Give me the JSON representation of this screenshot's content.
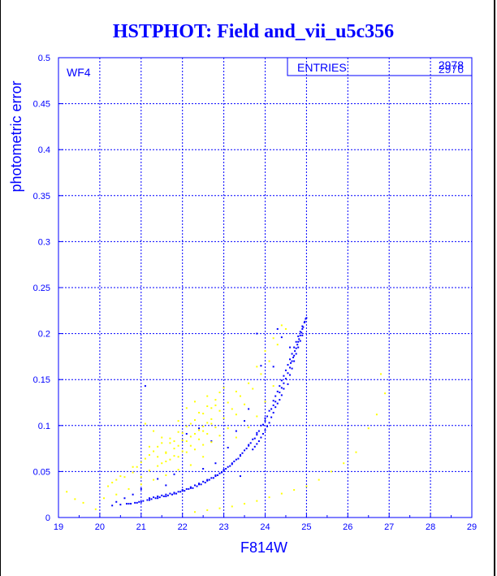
{
  "chart_data": {
    "type": "scatter",
    "title": "HSTPHOT: Field and_vii_u5c356",
    "xlabel": "F814W",
    "ylabel": "photometric error",
    "panel_label": "WF4",
    "stats_box": {
      "label": "ENTRIES",
      "values": [
        "2978",
        "2976"
      ]
    },
    "xlim": [
      19,
      29
    ],
    "ylim": [
      0,
      0.5
    ],
    "x_ticks": [
      19,
      20,
      21,
      22,
      23,
      24,
      25,
      26,
      27,
      28,
      29
    ],
    "y_ticks": [
      0,
      0.05,
      0.1,
      0.15,
      0.2,
      0.25,
      0.3,
      0.35,
      0.4,
      0.45,
      0.5
    ],
    "x_tick_labels": [
      "19",
      "20",
      "21",
      "22",
      "23",
      "24",
      "25",
      "26",
      "27",
      "28",
      "29"
    ],
    "y_tick_labels": [
      "0",
      "0.05",
      "0.1",
      "0.15",
      "0.2",
      "0.25",
      "0.3",
      "0.35",
      "0.4",
      "0.45",
      "0.5"
    ],
    "grid": true,
    "colors": {
      "axes": "#0000ff",
      "title": "#0000ff",
      "series_1": "#0000ff",
      "series_2": "#ffff00"
    },
    "series": [
      {
        "color": "#0000ff",
        "points": [
          [
            20.3,
            0.013
          ],
          [
            20.5,
            0.014
          ],
          [
            20.7,
            0.015
          ],
          [
            20.9,
            0.016
          ],
          [
            21.0,
            0.017
          ],
          [
            21.2,
            0.019
          ],
          [
            21.4,
            0.021
          ],
          [
            21.6,
            0.023
          ],
          [
            21.8,
            0.026
          ],
          [
            22.0,
            0.029
          ],
          [
            22.2,
            0.032
          ],
          [
            22.4,
            0.036
          ],
          [
            22.6,
            0.04
          ],
          [
            22.8,
            0.045
          ],
          [
            23.0,
            0.051
          ],
          [
            23.2,
            0.058
          ],
          [
            23.4,
            0.067
          ],
          [
            23.6,
            0.078
          ],
          [
            23.8,
            0.09
          ],
          [
            24.0,
            0.105
          ],
          [
            24.2,
            0.122
          ],
          [
            24.4,
            0.141
          ],
          [
            24.5,
            0.151
          ],
          [
            24.6,
            0.163
          ],
          [
            24.7,
            0.176
          ],
          [
            24.8,
            0.191
          ],
          [
            24.9,
            0.205
          ],
          [
            25.0,
            0.217
          ],
          [
            24.95,
            0.212
          ],
          [
            24.85,
            0.198
          ],
          [
            24.75,
            0.184
          ],
          [
            24.65,
            0.17
          ],
          [
            24.55,
            0.157
          ],
          [
            24.45,
            0.146
          ],
          [
            24.35,
            0.136
          ],
          [
            24.25,
            0.126
          ],
          [
            24.15,
            0.118
          ],
          [
            24.05,
            0.11
          ],
          [
            23.95,
            0.101
          ],
          [
            23.85,
            0.094
          ],
          [
            23.75,
            0.086
          ],
          [
            23.65,
            0.081
          ],
          [
            23.55,
            0.075
          ],
          [
            23.45,
            0.07
          ],
          [
            23.35,
            0.064
          ],
          [
            23.25,
            0.061
          ],
          [
            23.15,
            0.056
          ],
          [
            23.05,
            0.053
          ],
          [
            22.95,
            0.049
          ],
          [
            22.85,
            0.046
          ],
          [
            22.75,
            0.043
          ],
          [
            22.65,
            0.041
          ],
          [
            22.55,
            0.038
          ],
          [
            22.45,
            0.036
          ],
          [
            22.35,
            0.034
          ],
          [
            22.25,
            0.032
          ],
          [
            22.15,
            0.031
          ],
          [
            22.05,
            0.029
          ],
          [
            21.95,
            0.028
          ],
          [
            21.85,
            0.026
          ],
          [
            21.75,
            0.025
          ],
          [
            21.65,
            0.024
          ],
          [
            21.55,
            0.023
          ],
          [
            21.45,
            0.022
          ],
          [
            21.35,
            0.021
          ],
          [
            21.25,
            0.02
          ],
          [
            21.15,
            0.019
          ],
          [
            21.05,
            0.018
          ],
          [
            20.95,
            0.017
          ],
          [
            20.85,
            0.016
          ],
          [
            20.75,
            0.015
          ],
          [
            20.65,
            0.015
          ],
          [
            24.62,
            0.168
          ],
          [
            24.68,
            0.174
          ],
          [
            24.72,
            0.181
          ],
          [
            24.78,
            0.188
          ],
          [
            24.82,
            0.194
          ],
          [
            24.88,
            0.201
          ],
          [
            24.92,
            0.207
          ],
          [
            24.96,
            0.213
          ],
          [
            24.98,
            0.216
          ],
          [
            24.5,
            0.16
          ],
          [
            24.55,
            0.166
          ],
          [
            24.6,
            0.172
          ],
          [
            24.65,
            0.178
          ],
          [
            24.7,
            0.185
          ],
          [
            24.75,
            0.191
          ],
          [
            24.8,
            0.197
          ],
          [
            24.85,
            0.202
          ],
          [
            24.9,
            0.208
          ],
          [
            24.4,
            0.149
          ],
          [
            24.45,
            0.154
          ],
          [
            24.35,
            0.143
          ],
          [
            24.3,
            0.137
          ],
          [
            24.25,
            0.132
          ],
          [
            24.2,
            0.127
          ],
          [
            24.1,
            0.116
          ],
          [
            24.0,
            0.108
          ],
          [
            23.9,
            0.1
          ],
          [
            23.8,
            0.092
          ],
          [
            23.7,
            0.085
          ],
          [
            23.6,
            0.079
          ],
          [
            23.5,
            0.073
          ],
          [
            23.4,
            0.068
          ],
          [
            23.3,
            0.063
          ],
          [
            23.2,
            0.059
          ],
          [
            23.1,
            0.055
          ],
          [
            23.0,
            0.052
          ],
          [
            22.9,
            0.048
          ],
          [
            22.8,
            0.046
          ],
          [
            22.7,
            0.043
          ],
          [
            22.6,
            0.041
          ],
          [
            22.5,
            0.039
          ],
          [
            22.4,
            0.037
          ],
          [
            22.3,
            0.035
          ],
          [
            22.2,
            0.033
          ],
          [
            22.1,
            0.031
          ],
          [
            22.0,
            0.03
          ],
          [
            21.9,
            0.028
          ],
          [
            21.8,
            0.027
          ],
          [
            21.7,
            0.026
          ],
          [
            21.6,
            0.025
          ],
          [
            21.5,
            0.024
          ],
          [
            21.4,
            0.023
          ],
          [
            21.3,
            0.022
          ],
          [
            21.2,
            0.021
          ],
          [
            24.55,
            0.145
          ],
          [
            24.6,
            0.155
          ],
          [
            24.65,
            0.162
          ],
          [
            24.7,
            0.17
          ],
          [
            24.75,
            0.178
          ],
          [
            24.8,
            0.185
          ],
          [
            24.85,
            0.192
          ],
          [
            24.9,
            0.198
          ],
          [
            24.35,
            0.128
          ],
          [
            24.4,
            0.133
          ],
          [
            24.45,
            0.14
          ],
          [
            24.3,
            0.124
          ],
          [
            24.25,
            0.12
          ],
          [
            24.2,
            0.114
          ],
          [
            24.15,
            0.109
          ],
          [
            24.1,
            0.103
          ],
          [
            24.05,
            0.099
          ],
          [
            24.0,
            0.095
          ],
          [
            23.95,
            0.091
          ],
          [
            23.9,
            0.087
          ],
          [
            23.85,
            0.083
          ],
          [
            23.8,
            0.08
          ],
          [
            23.75,
            0.077
          ],
          [
            23.7,
            0.074
          ],
          [
            23.8,
            0.2
          ],
          [
            24.3,
            0.205
          ],
          [
            24.2,
            0.164
          ],
          [
            24.4,
            0.196
          ],
          [
            24.6,
            0.185
          ],
          [
            23.9,
            0.165
          ],
          [
            23.6,
            0.118
          ],
          [
            23.5,
            0.105
          ],
          [
            23.3,
            0.094
          ],
          [
            23.1,
            0.076
          ],
          [
            22.8,
            0.059
          ],
          [
            22.5,
            0.053
          ],
          [
            22.4,
            0.097
          ],
          [
            22.1,
            0.091
          ],
          [
            21.1,
            0.143
          ],
          [
            21.4,
            0.042
          ],
          [
            21.6,
            0.035
          ],
          [
            22.7,
            0.083
          ],
          [
            21.0,
            0.031
          ],
          [
            20.8,
            0.025
          ],
          [
            20.6,
            0.021
          ],
          [
            20.4,
            0.017
          ],
          [
            21.8,
            0.047
          ],
          [
            23.4,
            0.045
          ]
        ]
      },
      {
        "color": "#ffff00",
        "points": [
          [
            19.2,
            0.028
          ],
          [
            19.4,
            0.02
          ],
          [
            19.6,
            0.016
          ],
          [
            19.9,
            0.009
          ],
          [
            20.1,
            0.021
          ],
          [
            20.2,
            0.034
          ],
          [
            20.4,
            0.041
          ],
          [
            20.6,
            0.044
          ],
          [
            20.8,
            0.049
          ],
          [
            20.9,
            0.055
          ],
          [
            21.0,
            0.06
          ],
          [
            21.1,
            0.064
          ],
          [
            21.2,
            0.068
          ],
          [
            21.3,
            0.072
          ],
          [
            21.4,
            0.077
          ],
          [
            21.5,
            0.081
          ],
          [
            21.6,
            0.07
          ],
          [
            21.7,
            0.086
          ],
          [
            21.8,
            0.075
          ],
          [
            21.9,
            0.093
          ],
          [
            22.0,
            0.084
          ],
          [
            22.1,
            0.099
          ],
          [
            22.2,
            0.088
          ],
          [
            22.3,
            0.106
          ],
          [
            22.4,
            0.095
          ],
          [
            22.5,
            0.113
          ],
          [
            22.6,
            0.103
          ],
          [
            22.7,
            0.119
          ],
          [
            22.8,
            0.128
          ],
          [
            22.9,
            0.136
          ],
          [
            23.0,
            0.141
          ],
          [
            21.5,
            0.059
          ],
          [
            21.7,
            0.063
          ],
          [
            21.9,
            0.066
          ],
          [
            22.1,
            0.071
          ],
          [
            22.3,
            0.074
          ],
          [
            22.5,
            0.079
          ],
          [
            22.7,
            0.082
          ],
          [
            21.2,
            0.051
          ],
          [
            21.4,
            0.056
          ],
          [
            21.6,
            0.061
          ],
          [
            21.8,
            0.067
          ],
          [
            22.0,
            0.072
          ],
          [
            22.2,
            0.078
          ],
          [
            22.4,
            0.085
          ],
          [
            22.6,
            0.091
          ],
          [
            22.8,
            0.098
          ],
          [
            23.0,
            0.108
          ],
          [
            23.2,
            0.118
          ],
          [
            23.4,
            0.132
          ],
          [
            23.6,
            0.146
          ],
          [
            23.8,
            0.164
          ],
          [
            24.0,
            0.181
          ],
          [
            24.2,
            0.195
          ],
          [
            24.4,
            0.209
          ],
          [
            23.3,
            0.112
          ],
          [
            23.5,
            0.123
          ],
          [
            23.7,
            0.14
          ],
          [
            23.9,
            0.156
          ],
          [
            24.1,
            0.17
          ],
          [
            24.3,
            0.188
          ],
          [
            24.5,
            0.205
          ],
          [
            22.9,
            0.089
          ],
          [
            22.5,
            0.066
          ],
          [
            22.2,
            0.057
          ],
          [
            21.9,
            0.052
          ],
          [
            21.6,
            0.046
          ],
          [
            21.3,
            0.041
          ],
          [
            21.0,
            0.036
          ],
          [
            20.7,
            0.031
          ],
          [
            20.4,
            0.025
          ],
          [
            22.3,
            0.006
          ],
          [
            22.6,
            0.008
          ],
          [
            22.9,
            0.01
          ],
          [
            23.2,
            0.012
          ],
          [
            23.5,
            0.015
          ],
          [
            23.8,
            0.018
          ],
          [
            24.1,
            0.022
          ],
          [
            24.4,
            0.026
          ],
          [
            24.7,
            0.03
          ],
          [
            25.0,
            0.034
          ],
          [
            25.3,
            0.041
          ],
          [
            25.6,
            0.05
          ],
          [
            25.9,
            0.059
          ],
          [
            26.2,
            0.071
          ],
          [
            26.5,
            0.097
          ],
          [
            26.7,
            0.112
          ],
          [
            26.9,
            0.135
          ],
          [
            26.8,
            0.156
          ],
          [
            21.9,
            0.105
          ],
          [
            22.1,
            0.119
          ],
          [
            22.3,
            0.126
          ],
          [
            22.6,
            0.132
          ],
          [
            22.8,
            0.122
          ],
          [
            22.5,
            0.094
          ],
          [
            22.7,
            0.102
          ],
          [
            23.1,
            0.097
          ],
          [
            23.3,
            0.087
          ],
          [
            23.6,
            0.098
          ],
          [
            23.8,
            0.11
          ],
          [
            24.0,
            0.126
          ],
          [
            24.2,
            0.143
          ],
          [
            21.1,
            0.102
          ],
          [
            21.3,
            0.094
          ],
          [
            21.5,
            0.087
          ],
          [
            21.7,
            0.081
          ],
          [
            21.9,
            0.078
          ],
          [
            22.1,
            0.083
          ],
          [
            22.3,
            0.091
          ],
          [
            22.5,
            0.099
          ],
          [
            22.7,
            0.107
          ],
          [
            22.9,
            0.116
          ],
          [
            23.1,
            0.125
          ],
          [
            23.3,
            0.137
          ],
          [
            20.3,
            0.038
          ],
          [
            20.5,
            0.045
          ],
          [
            20.8,
            0.055
          ],
          [
            21.0,
            0.044
          ],
          [
            21.2,
            0.077
          ],
          [
            21.4,
            0.066
          ],
          [
            21.6,
            0.071
          ],
          [
            21.8,
            0.083
          ],
          [
            22.0,
            0.092
          ],
          [
            22.2,
            0.102
          ],
          [
            22.4,
            0.114
          ],
          [
            22.6,
            0.121
          ]
        ]
      }
    ]
  }
}
